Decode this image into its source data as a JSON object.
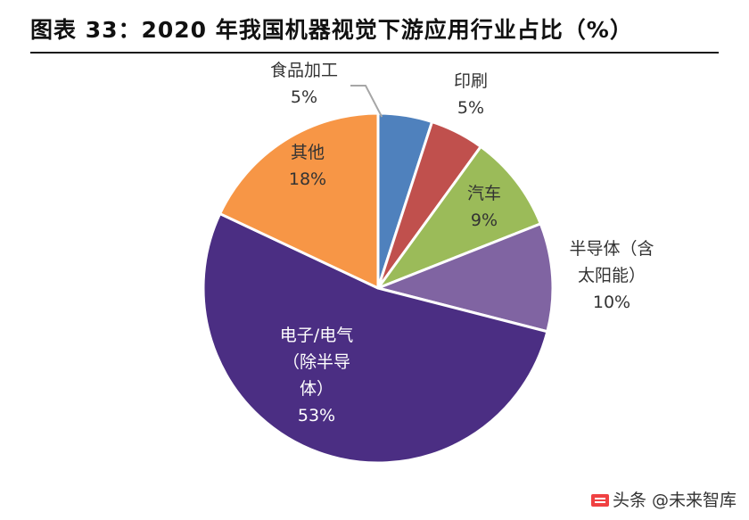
{
  "header": {
    "title": "图表 33：2020 年我国机器视觉下游应用行业占比（%）"
  },
  "watermark": {
    "text": "头条 @未来智库",
    "icon": "toutiao-logo-icon"
  },
  "chart_data": {
    "type": "pie",
    "title": "图表 33：2020 年我国机器视觉下游应用行业占比（%）",
    "start": "top-center",
    "direction": "clockwise",
    "slices": [
      {
        "name": "foodprocessing",
        "label_lines": [
          "食品加工"
        ],
        "value": 5,
        "value_text": "5%",
        "color": "#4f81bd",
        "label_color": "#333333"
      },
      {
        "name": "printing",
        "label_lines": [
          "印刷"
        ],
        "value": 5,
        "value_text": "5%",
        "color": "#c0504d",
        "label_color": "#333333"
      },
      {
        "name": "automotive",
        "label_lines": [
          "汽车"
        ],
        "value": 9,
        "value_text": "9%",
        "color": "#9bbb59",
        "label_color": "#333333"
      },
      {
        "name": "semiconductor",
        "label_lines": [
          "半导体（含",
          "太阳能）"
        ],
        "value": 10,
        "value_text": "10%",
        "color": "#8064a2",
        "label_color": "#333333"
      },
      {
        "name": "electronics",
        "label_lines": [
          "电子/电气",
          "（除半导",
          "体）"
        ],
        "value": 53,
        "value_text": "53%",
        "color": "#4b2e83",
        "label_color": "#ffffff"
      },
      {
        "name": "other",
        "label_lines": [
          "其他"
        ],
        "value": 18,
        "value_text": "18%",
        "color": "#f79646",
        "label_color": "#333333"
      }
    ]
  }
}
